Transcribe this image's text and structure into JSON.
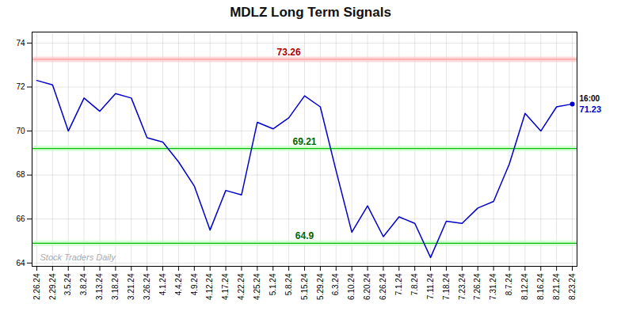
{
  "chart_data": {
    "type": "line",
    "title": "MDLZ Long Term Signals",
    "categories": [
      "2.26.24",
      "2.29.24",
      "3.5.24",
      "3.8.24",
      "3.13.24",
      "3.18.24",
      "3.21.24",
      "3.26.24",
      "4.1.24",
      "4.4.24",
      "4.9.24",
      "4.12.24",
      "4.17.24",
      "4.22.24",
      "4.25.24",
      "5.1.24",
      "5.8.24",
      "5.15.24",
      "5.29.24",
      "6.3.24",
      "6.10.24",
      "6.20.24",
      "6.26.24",
      "7.1.24",
      "7.8.24",
      "7.11.24",
      "7.18.24",
      "7.23.24",
      "7.26.24",
      "7.31.24",
      "8.7.24",
      "8.12.24",
      "8.16.24",
      "8.21.24",
      "8.23.24"
    ],
    "values": [
      72.3,
      72.1,
      70.0,
      71.5,
      70.9,
      71.7,
      71.5,
      69.7,
      69.5,
      68.6,
      67.5,
      65.5,
      67.3,
      67.1,
      70.4,
      70.1,
      70.6,
      71.6,
      71.1,
      68.2,
      65.4,
      66.6,
      65.2,
      66.1,
      65.8,
      64.25,
      65.9,
      65.8,
      66.5,
      66.8,
      68.5,
      70.8,
      70.0,
      71.1,
      71.23
    ],
    "color": "#0000cc",
    "ylim": [
      63.85,
      74.5
    ],
    "yticks": [
      64,
      66,
      68,
      70,
      72,
      74
    ],
    "grid": true,
    "reference_lines": [
      {
        "value": 73.26,
        "color": "#ff9999",
        "band_color": "#ffcccc",
        "label_color": "#aa0000"
      },
      {
        "value": 69.21,
        "color": "#00bb00",
        "band_color": "#ccffcc",
        "label_color": "#006600"
      },
      {
        "value": 64.9,
        "color": "#00bb00",
        "band_color": "#ccffcc",
        "label_color": "#006600"
      }
    ],
    "last_point": {
      "label": "16:00",
      "value": 71.23,
      "color": "#0000cc"
    },
    "watermark": "Stock Traders Daily",
    "watermark_color": "#aaaaaa"
  }
}
